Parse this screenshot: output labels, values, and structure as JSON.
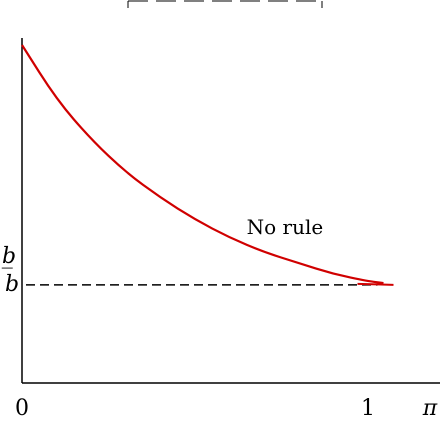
{
  "chart_data": {
    "type": "line",
    "title": "",
    "xlabel": "",
    "ylabel": "",
    "xlim": [
      0,
      1.3
    ],
    "ylim": [
      0,
      1.0
    ],
    "x_ticks": [
      {
        "label": "0",
        "value": 0
      },
      {
        "label": "1",
        "value": 1
      },
      {
        "label": "π",
        "value": 1.2
      }
    ],
    "y_ticks": [
      {
        "label": "b",
        "value": 0.27
      },
      {
        "label": "b̲",
        "value": 0.27
      }
    ],
    "series": [
      {
        "name": "No rule",
        "color": "#d00000",
        "style": "solid",
        "x": [
          0,
          0.1,
          0.2,
          0.3,
          0.4,
          0.5,
          0.6,
          0.7,
          0.8,
          0.9,
          1.0,
          1.05
        ],
        "y": [
          0.93,
          0.78,
          0.67,
          0.58,
          0.51,
          0.45,
          0.4,
          0.36,
          0.33,
          0.3,
          0.28,
          0.275
        ]
      },
      {
        "name": "",
        "color": "#000000",
        "style": "dashed",
        "x": [
          0,
          1.05
        ],
        "y": [
          0.27,
          0.27
        ]
      }
    ],
    "annotations": [
      {
        "text": "No rule",
        "x": 0.76,
        "y": 0.41
      }
    ]
  }
}
